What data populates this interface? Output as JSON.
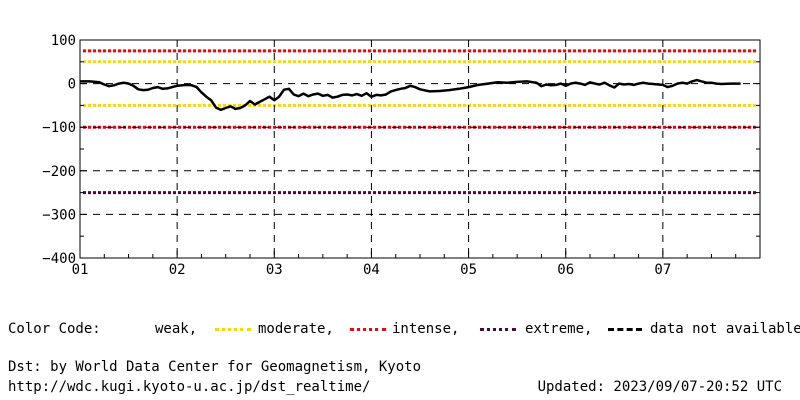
{
  "chart_data": {
    "type": "line",
    "title": "",
    "xlabel": "",
    "ylabel": "",
    "x_unit": "day of month",
    "xlim": [
      1,
      8
    ],
    "ylim": [
      -400,
      100
    ],
    "x_ticks": [
      "01",
      "02",
      "03",
      "04",
      "05",
      "06",
      "07"
    ],
    "y_ticks": [
      "100",
      "0",
      "−100",
      "−200",
      "−300",
      "−400"
    ],
    "y_tick_values": [
      100,
      0,
      -100,
      -200,
      -300,
      -400
    ],
    "grid": true,
    "reference_lines": [
      {
        "level": "moderate",
        "values": [
          75,
          -50
        ]
      },
      {
        "level": "weak",
        "values": [
          50,
          -50
        ]
      },
      {
        "level": "intense",
        "values": [
          -100
        ]
      },
      {
        "level": "extreme",
        "values": [
          -250
        ]
      }
    ],
    "series": [
      {
        "x": [
          1.0,
          1.1,
          1.2,
          1.25,
          1.3,
          1.35,
          1.4,
          1.45,
          1.5,
          1.55,
          1.6,
          1.65,
          1.7,
          1.75,
          1.8,
          1.85,
          1.9,
          1.95,
          2.0,
          2.1,
          2.15,
          2.2,
          2.25,
          2.3,
          2.35,
          2.4,
          2.45,
          2.5,
          2.55,
          2.6,
          2.65,
          2.7,
          2.75,
          2.8,
          2.85,
          2.9,
          2.95,
          3.0,
          3.05,
          3.1,
          3.15,
          3.2,
          3.25,
          3.3,
          3.35,
          3.4,
          3.45,
          3.5,
          3.55,
          3.6,
          3.65,
          3.7,
          3.75,
          3.8,
          3.85,
          3.9,
          3.95,
          4.0,
          4.05,
          4.1,
          4.15,
          4.2,
          4.25,
          4.3,
          4.35,
          4.4,
          4.45,
          4.5,
          4.6,
          4.7,
          4.8,
          4.9,
          5.0,
          5.1,
          5.2,
          5.3,
          5.4,
          5.5,
          5.6,
          5.7,
          5.75,
          5.8,
          5.85,
          5.9,
          5.95,
          6.0,
          6.05,
          6.1,
          6.15,
          6.2,
          6.25,
          6.3,
          6.35,
          6.4,
          6.45,
          6.5,
          6.55,
          6.6,
          6.65,
          6.7,
          6.75,
          6.8,
          6.85,
          6.9,
          6.95,
          7.0,
          7.05,
          7.1,
          7.15,
          7.2,
          7.25,
          7.3,
          7.35,
          7.4,
          7.45,
          7.5,
          7.55,
          7.6,
          7.7,
          7.8
        ],
        "values": [
          5,
          5,
          3,
          -2,
          -6,
          -4,
          0,
          2,
          0,
          -5,
          -13,
          -15,
          -14,
          -10,
          -8,
          -12,
          -11,
          -8,
          -5,
          -3,
          -4,
          -8,
          -20,
          -30,
          -38,
          -55,
          -60,
          -56,
          -52,
          -58,
          -56,
          -50,
          -40,
          -48,
          -42,
          -36,
          -30,
          -38,
          -30,
          -14,
          -12,
          -25,
          -29,
          -23,
          -29,
          -25,
          -23,
          -28,
          -26,
          -32,
          -30,
          -26,
          -25,
          -27,
          -24,
          -28,
          -22,
          -30,
          -26,
          -27,
          -25,
          -18,
          -15,
          -12,
          -10,
          -5,
          -8,
          -13,
          -18,
          -17,
          -15,
          -12,
          -8,
          -3,
          0,
          3,
          2,
          4,
          5,
          2,
          -6,
          -2,
          -4,
          -3,
          0,
          -5,
          0,
          2,
          0,
          -3,
          3,
          0,
          -2,
          2,
          -4,
          -9,
          0,
          -2,
          -1,
          -3,
          0,
          2,
          0,
          -1,
          -2,
          -3,
          -8,
          -5,
          0,
          2,
          0,
          5,
          8,
          5,
          2,
          2,
          0,
          -1,
          0,
          0
        ]
      }
    ]
  },
  "legend": {
    "prefix": "Color Code:",
    "items": [
      {
        "label": "weak,",
        "color": "#ffd400",
        "style": "dotted"
      },
      {
        "label": "moderate,",
        "color": "#ff0000",
        "style": "dotted"
      },
      {
        "label": "intense,",
        "color": "#4b0a3c",
        "style": "dotted"
      },
      {
        "label": "extreme,",
        "color": "#000000",
        "style": "dashed"
      },
      {
        "label": "data not available.",
        "color": "",
        "style": ""
      }
    ]
  },
  "footer": {
    "source": "Dst: by World Data Center for Geomagnetism, Kyoto",
    "url": "http://wdc.kugi.kyoto-u.ac.jp/dst_realtime/",
    "updated": "Updated: 2023/09/07-20:52 UTC"
  },
  "colors": {
    "moderate_line": "#ffd400",
    "intense_line": "#ff0000",
    "extreme_line": "#4b0a3c",
    "grid": "#000000",
    "series": "#000000"
  }
}
